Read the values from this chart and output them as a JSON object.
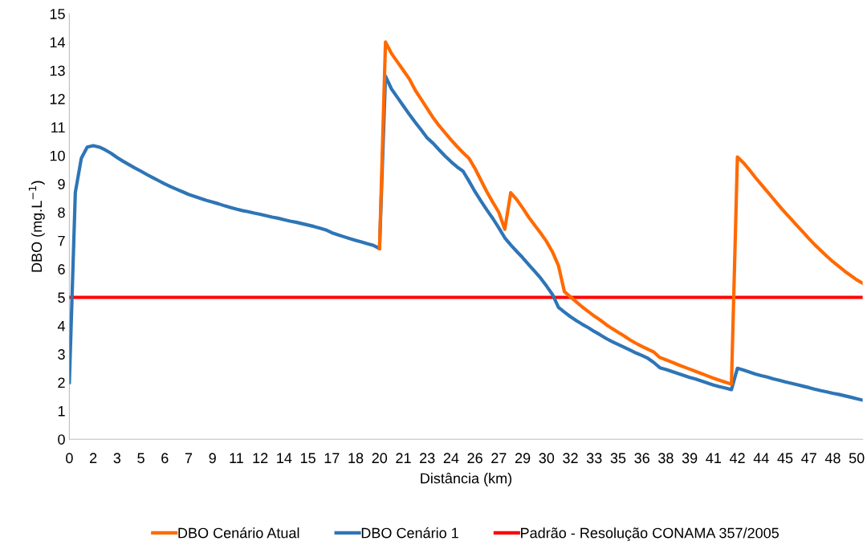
{
  "chart_data": {
    "type": "line",
    "xlabel": "Distância (km)",
    "ylabel": "DBO (mg.L$^{−1}$)",
    "categories": [
      "0",
      null,
      null,
      null,
      "2",
      null,
      null,
      null,
      "3",
      null,
      null,
      null,
      "5",
      null,
      null,
      null,
      "6",
      null,
      null,
      null,
      "7",
      null,
      null,
      null,
      "9",
      null,
      null,
      null,
      "11",
      null,
      null,
      null,
      "12",
      null,
      null,
      null,
      "14",
      null,
      null,
      null,
      "15",
      null,
      null,
      null,
      "17",
      null,
      null,
      null,
      "18",
      null,
      null,
      null,
      "20",
      null,
      null,
      null,
      "21",
      null,
      null,
      null,
      "23",
      null,
      null,
      null,
      "24",
      null,
      null,
      null,
      "26",
      null,
      null,
      null,
      "27",
      null,
      null,
      null,
      "29",
      null,
      null,
      null,
      "30",
      null,
      null,
      null,
      "32",
      null,
      null,
      null,
      "33",
      null,
      null,
      null,
      "35",
      null,
      null,
      null,
      "36",
      null,
      null,
      null,
      "38",
      null,
      null,
      null,
      "39",
      null,
      null,
      null,
      "41",
      null,
      null,
      null,
      "42",
      null,
      null,
      null,
      "44",
      null,
      null,
      null,
      "45",
      null,
      null,
      null,
      "47",
      null,
      null,
      null,
      "48",
      null,
      null,
      null,
      "50",
      null
    ],
    "ylim": [
      0,
      15
    ],
    "yticks": [
      0,
      1,
      2,
      3,
      4,
      5,
      6,
      7,
      8,
      9,
      10,
      11,
      12,
      13,
      14,
      15
    ],
    "grid": false,
    "legend": "bottom",
    "marker": "none",
    "line_style": "solid",
    "series": [
      {
        "name": "DBO Cenário Atual",
        "color": "#ff6a00",
        "values": [
          null,
          null,
          null,
          null,
          null,
          null,
          null,
          null,
          null,
          null,
          null,
          null,
          null,
          null,
          null,
          null,
          null,
          null,
          null,
          null,
          null,
          null,
          null,
          null,
          null,
          null,
          null,
          null,
          null,
          null,
          null,
          null,
          null,
          null,
          null,
          null,
          null,
          null,
          null,
          null,
          null,
          null,
          null,
          null,
          null,
          null,
          null,
          null,
          null,
          null,
          null,
          null,
          6.72,
          14.0,
          13.6,
          13.3,
          13.0,
          12.7,
          12.3,
          11.98,
          11.65,
          11.33,
          11.05,
          10.8,
          10.55,
          10.32,
          10.1,
          9.9,
          9.55,
          9.13,
          8.72,
          8.35,
          8.0,
          7.4,
          8.69,
          8.45,
          8.15,
          7.83,
          7.55,
          7.27,
          6.97,
          6.6,
          6.12,
          5.2,
          5.02,
          4.84,
          4.66,
          4.5,
          4.34,
          4.2,
          4.04,
          3.9,
          3.77,
          3.64,
          3.5,
          3.38,
          3.27,
          3.17,
          3.07,
          2.88,
          2.8,
          2.72,
          2.63,
          2.55,
          2.47,
          2.39,
          2.31,
          2.23,
          2.15,
          2.08,
          2.01,
          1.94,
          9.95,
          9.75,
          9.5,
          9.23,
          8.98,
          8.73,
          8.48,
          8.23,
          7.99,
          7.76,
          7.53,
          7.3,
          7.07,
          6.85,
          6.65,
          6.45,
          6.26,
          6.09,
          5.92,
          5.77,
          5.62,
          5.5
        ]
      },
      {
        "name": "DBO Cenário 1",
        "color": "#2e75b6",
        "values": [
          2.0,
          8.7,
          9.9,
          10.3,
          10.35,
          10.3,
          10.2,
          10.08,
          9.93,
          9.8,
          9.68,
          9.56,
          9.45,
          9.33,
          9.22,
          9.11,
          9.0,
          8.9,
          8.81,
          8.72,
          8.63,
          8.56,
          8.49,
          8.42,
          8.36,
          8.3,
          8.23,
          8.17,
          8.11,
          8.06,
          8.02,
          7.97,
          7.93,
          7.88,
          7.83,
          7.79,
          7.74,
          7.69,
          7.65,
          7.6,
          7.55,
          7.5,
          7.44,
          7.38,
          7.28,
          7.21,
          7.14,
          7.07,
          7.01,
          6.95,
          6.89,
          6.83,
          6.72,
          12.8,
          12.35,
          12.05,
          11.75,
          11.45,
          11.17,
          10.9,
          10.62,
          10.43,
          10.2,
          9.98,
          9.78,
          9.6,
          9.45,
          9.1,
          8.73,
          8.4,
          8.08,
          7.78,
          7.45,
          7.1,
          6.85,
          6.62,
          6.4,
          6.16,
          5.92,
          5.68,
          5.4,
          5.1,
          4.65,
          4.48,
          4.32,
          4.18,
          4.05,
          3.93,
          3.8,
          3.68,
          3.55,
          3.44,
          3.34,
          3.24,
          3.14,
          3.04,
          2.95,
          2.85,
          2.7,
          2.52,
          2.46,
          2.39,
          2.32,
          2.25,
          2.18,
          2.12,
          2.05,
          1.98,
          1.91,
          1.85,
          1.8,
          1.75,
          2.5,
          2.44,
          2.37,
          2.3,
          2.24,
          2.19,
          2.13,
          2.08,
          2.02,
          1.97,
          1.92,
          1.87,
          1.82,
          1.76,
          1.71,
          1.67,
          1.62,
          1.58,
          1.53,
          1.48,
          1.43,
          1.38
        ]
      },
      {
        "name": "Padrão - Resolução CONAMA 357/2005",
        "color": "#ff0000",
        "values": [
          5,
          5,
          5,
          5,
          5,
          5,
          5,
          5,
          5,
          5,
          5,
          5,
          5,
          5,
          5,
          5,
          5,
          5,
          5,
          5,
          5,
          5,
          5,
          5,
          5,
          5,
          5,
          5,
          5,
          5,
          5,
          5,
          5,
          5,
          5,
          5,
          5,
          5,
          5,
          5,
          5,
          5,
          5,
          5,
          5,
          5,
          5,
          5,
          5,
          5,
          5,
          5,
          5,
          5,
          5,
          5,
          5,
          5,
          5,
          5,
          5,
          5,
          5,
          5,
          5,
          5,
          5,
          5,
          5,
          5,
          5,
          5,
          5,
          5,
          5,
          5,
          5,
          5,
          5,
          5,
          5,
          5,
          5,
          5,
          5,
          5,
          5,
          5,
          5,
          5,
          5,
          5,
          5,
          5,
          5,
          5,
          5,
          5,
          5,
          5,
          5,
          5,
          5,
          5,
          5,
          5,
          5,
          5,
          5,
          5,
          5,
          5,
          5,
          5,
          5,
          5,
          5,
          5,
          5,
          5,
          5,
          5,
          5,
          5,
          5,
          5,
          5,
          5,
          5,
          5,
          5,
          5,
          5,
          5
        ]
      }
    ]
  }
}
